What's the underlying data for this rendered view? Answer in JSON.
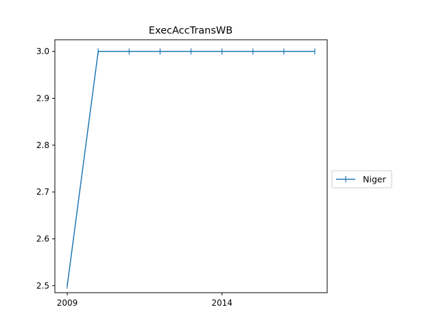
{
  "chart_data": {
    "type": "line",
    "title": "ExecAccTransWB",
    "xlabel": "",
    "ylabel": "",
    "x": [
      2009,
      2010,
      2011,
      2012,
      2013,
      2014,
      2015,
      2016,
      2017
    ],
    "series": [
      {
        "name": "Niger",
        "color": "#1f77b4",
        "marker": "plus",
        "values": [
          2.5,
          3.0,
          3.0,
          3.0,
          3.0,
          3.0,
          3.0,
          3.0,
          3.0
        ]
      }
    ],
    "xlim": [
      2008.6,
      2017.4
    ],
    "ylim": [
      2.485,
      3.025
    ],
    "xticks": [
      2009,
      2014
    ],
    "xtick_labels": [
      "2009",
      "2014"
    ],
    "yticks": [
      2.5,
      2.6,
      2.7,
      2.8,
      2.9,
      3.0
    ],
    "ytick_labels": [
      "2.5",
      "2.6",
      "2.7",
      "2.8",
      "2.9",
      "3.0"
    ],
    "grid": false,
    "legend_position": "outside-right"
  }
}
